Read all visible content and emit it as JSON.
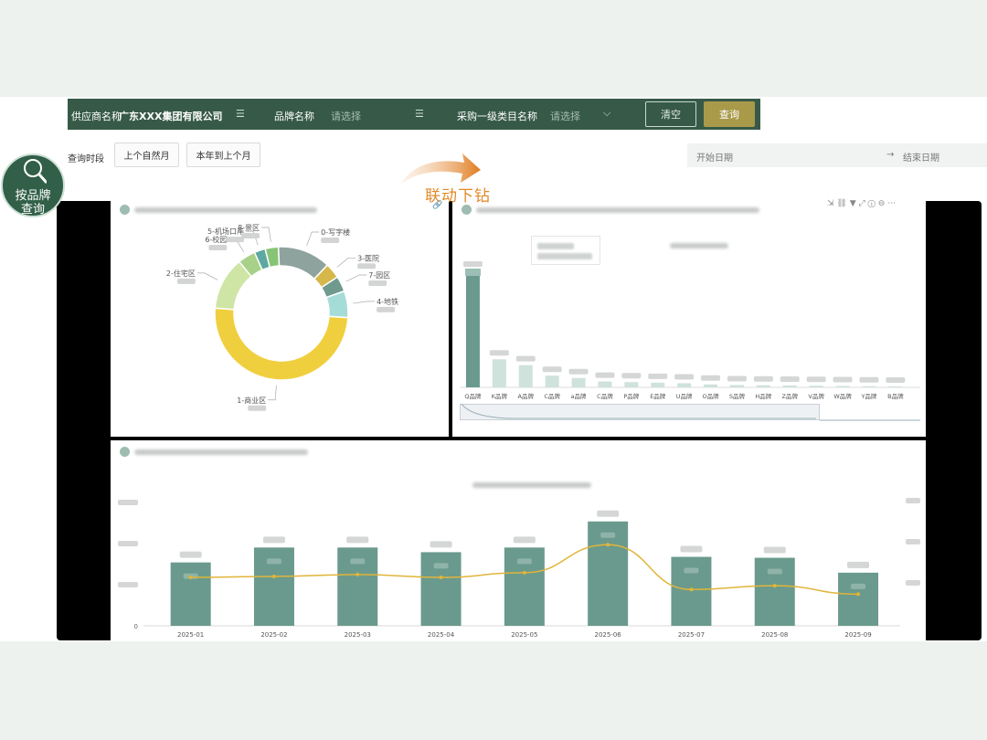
{
  "filters": {
    "supplier_label": "供应商名称",
    "supplier_value": "广东XXX集团有限公司",
    "brand_label": "品牌名称",
    "brand_placeholder": "请选择",
    "category_label": "采购一级类目名称",
    "category_placeholder": "请选择",
    "clear_label": "清空",
    "query_label": "查询"
  },
  "time": {
    "label": "查询时段",
    "btn_last_month": "上个自然月",
    "btn_ytd": "本年到上个月",
    "start_placeholder": "开始日期",
    "arrow": "→",
    "end_placeholder": "结束日期"
  },
  "badge": {
    "line1": "按品牌",
    "line2": "查询"
  },
  "annotation": {
    "drill": "联动下钻"
  },
  "colors": {
    "primary": "#375a48",
    "accent": "#a99a4a",
    "bar": "#6a9a8d",
    "line": "#e0b53a",
    "donut_main": "#f0cf3e"
  },
  "chart_data": [
    {
      "type": "pie",
      "subtype": "donut",
      "categories": [
        "1-商业区",
        "2-住宅区",
        "6-校园",
        "5-机场口岸",
        "8-景区",
        "0-写字楼",
        "3-医院",
        "7-园区",
        "4-地铁"
      ],
      "values": [
        47,
        12,
        4,
        2.5,
        3,
        12,
        3.5,
        3.5,
        6
      ],
      "colors": [
        "#f0cf3e",
        "#cfe5a6",
        "#a7d188",
        "#5ea8a2",
        "#87c475",
        "#8fa39e",
        "#d6b84a",
        "#6f9a8d",
        "#a6dcd8"
      ]
    },
    {
      "type": "bar",
      "categories": [
        "Q品牌",
        "K品牌",
        "A品牌",
        "C品牌",
        "a品牌",
        "C品牌",
        "P品牌",
        "E品牌",
        "U品牌",
        "O品牌",
        "S品牌",
        "H品牌",
        "Z品牌",
        "V品牌",
        "W品牌",
        "Y品牌",
        "B品牌"
      ],
      "values": [
        100,
        24,
        19,
        10,
        8,
        5,
        4.5,
        4,
        3.5,
        2.5,
        2,
        1.8,
        1.6,
        1.4,
        1.2,
        1,
        0.8
      ]
    },
    {
      "type": "bar",
      "categories": [
        "2025-01",
        "2025-02",
        "2025-03",
        "2025-04",
        "2025-05",
        "2025-06",
        "2025-07",
        "2025-08",
        "2025-09"
      ],
      "series": [
        {
          "type": "bar",
          "values": [
            68,
            84,
            84,
            79,
            84,
            112,
            74,
            73,
            57
          ]
        },
        {
          "type": "line",
          "values": [
            52,
            53,
            55,
            52,
            57,
            87,
            39,
            43,
            34
          ]
        }
      ],
      "y_tick_zero": "0",
      "grid": false
    }
  ]
}
